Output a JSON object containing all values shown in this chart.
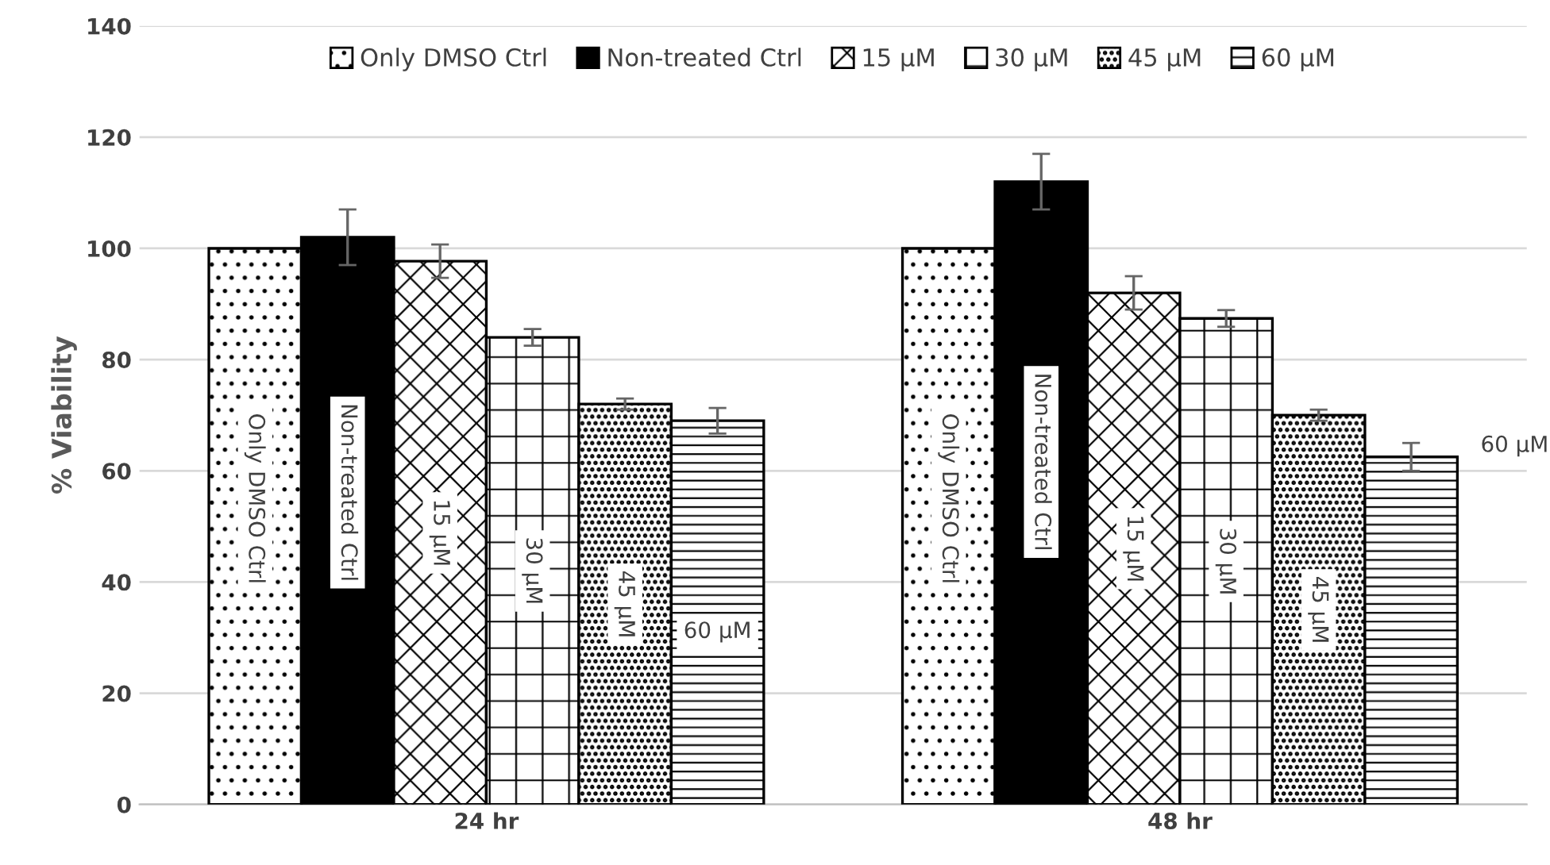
{
  "chart_data": {
    "type": "bar",
    "ylabel": "% Viability",
    "categories": [
      "24 hr",
      "48 hr"
    ],
    "series": [
      {
        "name": "Only DMSO Ctrl",
        "color": "#000000",
        "values": [
          100,
          100
        ]
      },
      {
        "name": "Non-treated Ctrl",
        "color": "#000000",
        "values": [
          102,
          112
        ],
        "errors": [
          5,
          5
        ]
      },
      {
        "name": "15 µM",
        "color": "#000000",
        "values": [
          97.7,
          92
        ],
        "errors": [
          3,
          3
        ]
      },
      {
        "name": "30 µM",
        "color": "#000000",
        "values": [
          84,
          87.4
        ],
        "errors": [
          1.5,
          1.5
        ]
      },
      {
        "name": "45 µM",
        "color": "#000000",
        "values": [
          72,
          70
        ],
        "errors": [
          1,
          1
        ]
      },
      {
        "name": "60 µM",
        "color": "#000000",
        "values": [
          69,
          62.5
        ],
        "errors": [
          2.3,
          2.5
        ]
      }
    ],
    "ylim": [
      0,
      140
    ],
    "yticks": [
      0,
      20,
      40,
      60,
      80,
      100,
      120,
      140
    ],
    "grid": "y",
    "legend": "top"
  }
}
